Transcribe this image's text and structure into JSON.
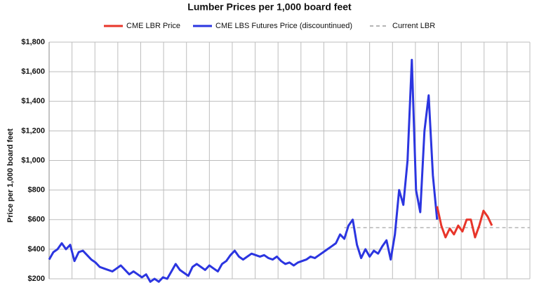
{
  "chart_data": {
    "type": "line",
    "title": "Lumber Prices per 1,000 board feet",
    "y_label": "Price per 1,000 board feet",
    "ylim": [
      200,
      1800
    ],
    "yticks": [
      {
        "value": 200,
        "label": "$200"
      },
      {
        "value": 400,
        "label": "$400"
      },
      {
        "value": 600,
        "label": "$600"
      },
      {
        "value": 800,
        "label": "$800"
      },
      {
        "value": 1000,
        "label": "$1,000"
      },
      {
        "value": 1200,
        "label": "$1,200"
      },
      {
        "value": 1400,
        "label": "$1,400"
      },
      {
        "value": 1600,
        "label": "$1,600"
      },
      {
        "value": 1800,
        "label": "$1,800"
      }
    ],
    "grid": true,
    "legend": "top",
    "series": [
      {
        "name": "CME LBR Price",
        "color": "#e8352a",
        "values": [
          null,
          null,
          null,
          null,
          null,
          null,
          null,
          null,
          null,
          null,
          null,
          null,
          null,
          null,
          null,
          null,
          null,
          null,
          null,
          null,
          null,
          null,
          null,
          null,
          null,
          null,
          null,
          null,
          null,
          null,
          null,
          null,
          null,
          null,
          null,
          null,
          null,
          null,
          null,
          null,
          null,
          null,
          null,
          null,
          null,
          null,
          null,
          null,
          null,
          null,
          null,
          null,
          null,
          null,
          null,
          null,
          null,
          null,
          null,
          null,
          null,
          null,
          null,
          null,
          null,
          null,
          null,
          null,
          null,
          null,
          null,
          null,
          null,
          null,
          null,
          null,
          null,
          null,
          null,
          null,
          null,
          null,
          null,
          null,
          null,
          null,
          null,
          null,
          null,
          null,
          null,
          null,
          690,
          560,
          480,
          540,
          500,
          560,
          520,
          600,
          600,
          480,
          560,
          660,
          620,
          560,
          null,
          null,
          null,
          null,
          null,
          null,
          null,
          null,
          null
        ]
      },
      {
        "name": "CME LBS Futures Price (discountinued)",
        "color": "#2b35e0",
        "values": [
          330,
          380,
          400,
          440,
          400,
          430,
          320,
          380,
          390,
          360,
          330,
          310,
          280,
          270,
          260,
          250,
          270,
          290,
          260,
          230,
          250,
          230,
          210,
          230,
          180,
          200,
          180,
          210,
          200,
          250,
          300,
          260,
          240,
          220,
          280,
          300,
          280,
          260,
          290,
          270,
          250,
          300,
          320,
          360,
          390,
          350,
          330,
          350,
          370,
          360,
          350,
          360,
          340,
          330,
          350,
          320,
          300,
          310,
          290,
          310,
          320,
          330,
          350,
          340,
          360,
          380,
          400,
          420,
          440,
          500,
          470,
          560,
          600,
          430,
          340,
          400,
          350,
          390,
          370,
          420,
          460,
          330,
          500,
          800,
          700,
          1000,
          1680,
          800,
          650,
          1200,
          1440,
          900,
          600,
          null,
          null,
          null,
          null,
          null,
          null,
          null,
          null,
          null,
          null,
          null,
          null,
          null,
          null,
          null,
          null,
          null,
          null,
          null,
          null,
          null,
          null
        ]
      },
      {
        "name": "Current LBR",
        "color": "#b5b5b5",
        "dashed": true,
        "values": [
          null,
          null,
          null,
          null,
          null,
          null,
          null,
          null,
          null,
          null,
          null,
          null,
          null,
          null,
          null,
          null,
          null,
          null,
          null,
          null,
          null,
          null,
          null,
          null,
          null,
          null,
          null,
          null,
          null,
          null,
          null,
          null,
          null,
          null,
          null,
          null,
          null,
          null,
          null,
          null,
          null,
          null,
          null,
          null,
          null,
          null,
          null,
          null,
          null,
          null,
          null,
          null,
          null,
          null,
          null,
          null,
          null,
          null,
          null,
          null,
          null,
          null,
          null,
          null,
          null,
          null,
          null,
          null,
          null,
          null,
          545,
          545,
          545,
          545,
          545,
          545,
          545,
          545,
          545,
          545,
          545,
          545,
          545,
          545,
          545,
          545,
          545,
          545,
          545,
          545,
          545,
          545,
          545,
          545,
          545,
          545,
          545,
          545,
          545,
          545,
          545,
          545,
          545,
          545,
          545,
          545,
          545,
          545,
          545,
          545,
          545,
          545,
          545,
          545,
          545
        ]
      }
    ]
  }
}
